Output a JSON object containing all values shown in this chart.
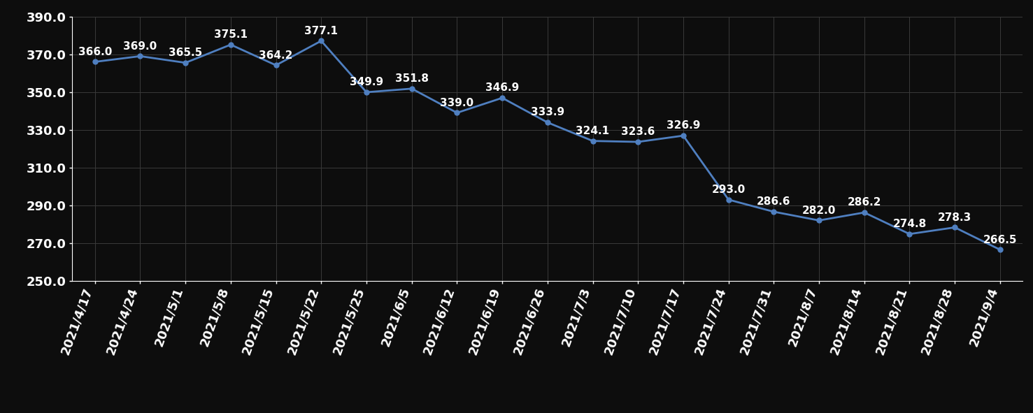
{
  "dates": [
    "2021/4/17",
    "2021/4/24",
    "2021/5/1",
    "2021/5/8",
    "2021/5/15",
    "2021/5/22",
    "2021/5/25",
    "2021/6/5",
    "2021/6/12",
    "2021/6/19",
    "2021/6/26",
    "2021/7/3",
    "2021/7/10",
    "2021/7/17",
    "2021/7/24",
    "2021/7/31",
    "2021/8/7",
    "2021/8/14",
    "2021/8/21",
    "2021/8/28",
    "2021/9/4"
  ],
  "values": [
    366.0,
    369.0,
    365.5,
    375.1,
    364.2,
    377.1,
    349.9,
    351.8,
    339.0,
    346.9,
    333.9,
    324.1,
    323.6,
    326.9,
    293.0,
    286.6,
    282.0,
    286.2,
    274.8,
    278.3,
    266.5
  ],
  "ylim": [
    250.0,
    390.0
  ],
  "yticks": [
    250.0,
    270.0,
    290.0,
    310.0,
    330.0,
    350.0,
    370.0,
    390.0
  ],
  "line_color": "#4f7fc0",
  "marker_color": "#4f7fc0",
  "bg_color": "#0d0d0d",
  "text_color": "#ffffff",
  "grid_color": "#3a3a3a",
  "label_fontsize": 13,
  "tick_fontsize": 13,
  "value_fontsize": 11
}
